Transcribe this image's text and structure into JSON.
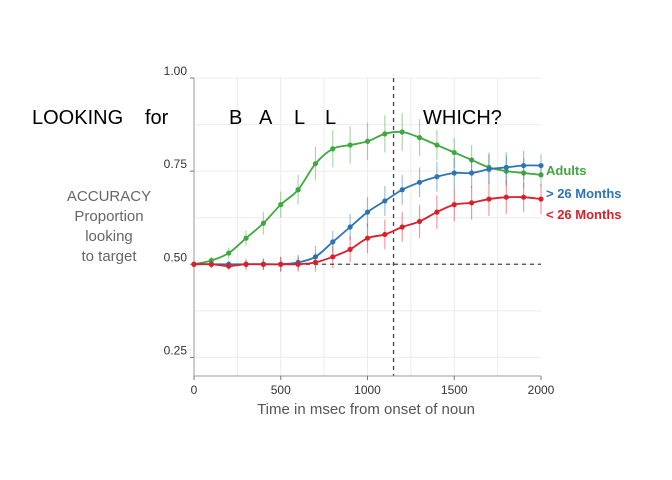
{
  "chart_data": {
    "type": "line",
    "title_words": [
      "LOOKING",
      "for",
      "B",
      "A",
      "L",
      "L",
      "WHICH?"
    ],
    "xlabel": "Time in msec from onset of noun",
    "ylabel_lines": [
      "ACCURACY",
      "Proportion",
      "looking",
      "to target"
    ],
    "xlim": [
      0,
      2000
    ],
    "ylim": [
      0.2,
      1.0
    ],
    "x_ticks": [
      0,
      500,
      1000,
      1500,
      2000
    ],
    "x_tick_labels": [
      "0",
      "500",
      "1000",
      "1500",
      "2000"
    ],
    "y_ticks": [
      0.25,
      0.5,
      0.75,
      1.0
    ],
    "y_tick_labels": [
      "0.25",
      "0.50",
      "0.75",
      "1.00"
    ],
    "reference_lines": {
      "vertical_x": 1150,
      "horizontal_y": 0.5
    },
    "grid": true,
    "legend_position": "right",
    "series": [
      {
        "name": "Adults",
        "color": "#3fa83f",
        "x": [
          0,
          100,
          200,
          300,
          400,
          500,
          600,
          700,
          800,
          900,
          1000,
          1100,
          1200,
          1300,
          1400,
          1500,
          1600,
          1700,
          1800,
          1900,
          2000
        ],
        "y": [
          0.5,
          0.51,
          0.53,
          0.57,
          0.61,
          0.66,
          0.7,
          0.77,
          0.81,
          0.82,
          0.83,
          0.85,
          0.855,
          0.84,
          0.82,
          0.8,
          0.78,
          0.76,
          0.75,
          0.745,
          0.74
        ],
        "err": [
          0.005,
          0.01,
          0.015,
          0.02,
          0.03,
          0.035,
          0.04,
          0.045,
          0.05,
          0.05,
          0.05,
          0.05,
          0.05,
          0.05,
          0.04,
          0.04,
          0.04,
          0.04,
          0.04,
          0.04,
          0.03
        ]
      },
      {
        "name": "> 26 Months",
        "color": "#2e74b5",
        "x": [
          0,
          100,
          200,
          300,
          400,
          500,
          600,
          700,
          800,
          900,
          1000,
          1100,
          1200,
          1300,
          1400,
          1500,
          1600,
          1700,
          1800,
          1900,
          2000
        ],
        "y": [
          0.5,
          0.5,
          0.5,
          0.5,
          0.5,
          0.5,
          0.505,
          0.52,
          0.56,
          0.6,
          0.64,
          0.67,
          0.7,
          0.72,
          0.735,
          0.745,
          0.745,
          0.755,
          0.76,
          0.765,
          0.765
        ],
        "err": [
          0.005,
          0.01,
          0.01,
          0.01,
          0.015,
          0.02,
          0.02,
          0.03,
          0.03,
          0.035,
          0.04,
          0.04,
          0.04,
          0.04,
          0.04,
          0.04,
          0.04,
          0.04,
          0.04,
          0.04,
          0.03
        ]
      },
      {
        "name": "< 26 Months",
        "color": "#d9202a",
        "x": [
          0,
          100,
          200,
          300,
          400,
          500,
          600,
          700,
          800,
          900,
          1000,
          1100,
          1200,
          1300,
          1400,
          1500,
          1600,
          1700,
          1800,
          1900,
          2000
        ],
        "y": [
          0.5,
          0.5,
          0.495,
          0.5,
          0.5,
          0.5,
          0.5,
          0.505,
          0.52,
          0.54,
          0.57,
          0.58,
          0.6,
          0.615,
          0.64,
          0.66,
          0.665,
          0.675,
          0.68,
          0.68,
          0.675
        ],
        "err": [
          0.005,
          0.01,
          0.01,
          0.015,
          0.015,
          0.02,
          0.02,
          0.025,
          0.03,
          0.035,
          0.04,
          0.04,
          0.04,
          0.045,
          0.045,
          0.045,
          0.045,
          0.045,
          0.045,
          0.04,
          0.04
        ]
      }
    ]
  }
}
